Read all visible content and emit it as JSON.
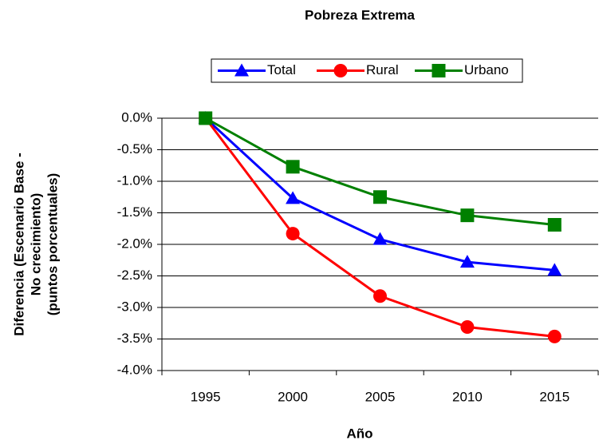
{
  "chart_data": {
    "type": "line",
    "title": "Pobreza Extrema",
    "ylabel": [
      "Diferencia (Escenario Base -",
      "No crecimiento)",
      "(puntos porcentuales)"
    ],
    "xlabel": "Año",
    "categories": [
      "1995",
      "2000",
      "2005",
      "2010",
      "2015"
    ],
    "series": [
      {
        "name": "Total",
        "color": "#0000ff",
        "marker": "triangle",
        "values": [
          0,
          -1.27,
          -1.92,
          -2.28,
          -2.41
        ]
      },
      {
        "name": "Rural",
        "color": "#ff0000",
        "marker": "circle",
        "values": [
          0,
          -1.83,
          -2.82,
          -3.31,
          -3.46
        ]
      },
      {
        "name": "Urbano",
        "color": "#008000",
        "marker": "square",
        "values": [
          0,
          -0.77,
          -1.25,
          -1.54,
          -1.69
        ]
      }
    ],
    "ylim": [
      -4.0,
      0.0
    ],
    "yticks": [
      {
        "value": 0.0,
        "label": "0.0%"
      },
      {
        "value": -0.5,
        "label": "-0.5%"
      },
      {
        "value": -1.0,
        "label": "-1.0%"
      },
      {
        "value": -1.5,
        "label": "-1.5%"
      },
      {
        "value": -2.0,
        "label": "-2.0%"
      },
      {
        "value": -2.5,
        "label": "-2.5%"
      },
      {
        "value": -3.0,
        "label": "-3.0%"
      },
      {
        "value": -3.5,
        "label": "-3.5%"
      },
      {
        "value": -4.0,
        "label": "-4.0%"
      }
    ],
    "grid": true,
    "legend": "top"
  }
}
